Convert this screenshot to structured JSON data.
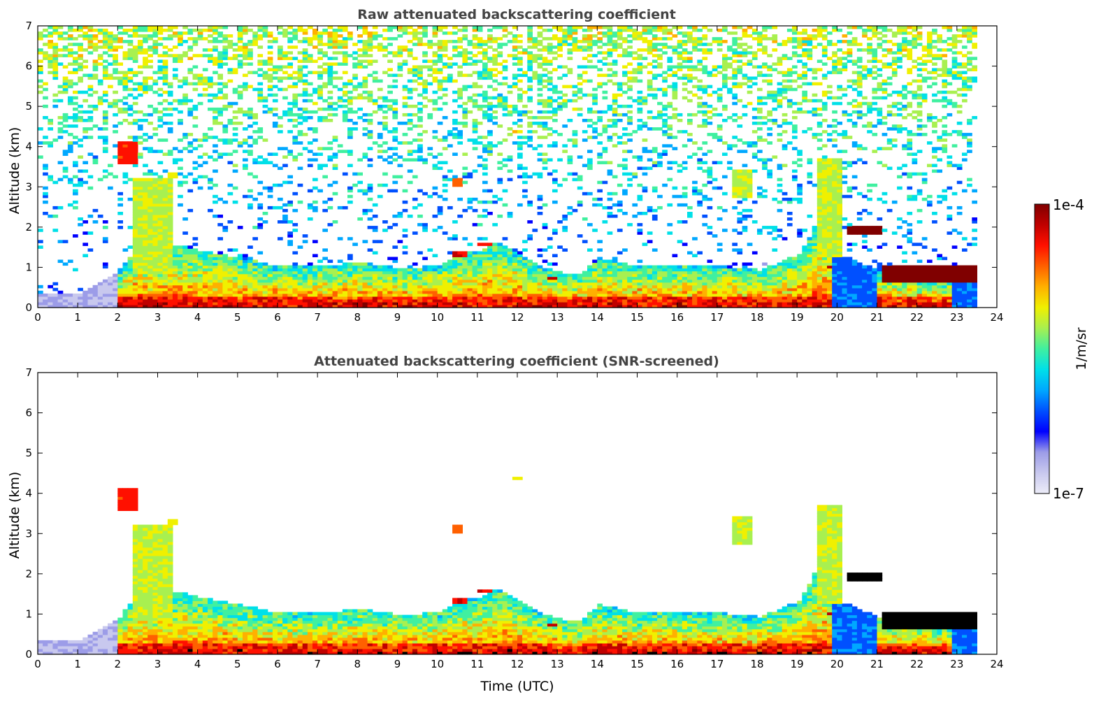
{
  "chart_data": [
    {
      "type": "heatmap",
      "title": "Raw attenuated backscattering coefficient",
      "xlabel": "",
      "ylabel": "Altitude (km)",
      "xlim": [
        0,
        24
      ],
      "ylim": [
        0,
        7
      ],
      "xticks": [
        "0",
        "1",
        "2",
        "3",
        "4",
        "5",
        "6",
        "7",
        "8",
        "9",
        "10",
        "11",
        "12",
        "13",
        "14",
        "15",
        "16",
        "17",
        "18",
        "19",
        "20",
        "21",
        "22",
        "23",
        "24"
      ],
      "yticks": [
        "0",
        "1",
        "2",
        "3",
        "4",
        "5",
        "6",
        "7"
      ],
      "data_end_time": 23.5,
      "boundary_layer_top_km": [
        [
          0,
          0.35
        ],
        [
          1,
          0.35
        ],
        [
          2,
          0.9
        ],
        [
          2.5,
          1.6
        ],
        [
          3,
          1.4
        ],
        [
          3.5,
          1.5
        ],
        [
          4,
          1.4
        ],
        [
          4.5,
          1.3
        ],
        [
          5,
          1.2
        ],
        [
          6,
          1.0
        ],
        [
          7,
          1.0
        ],
        [
          8,
          1.1
        ],
        [
          9,
          0.95
        ],
        [
          10,
          1.0
        ],
        [
          10.5,
          1.3
        ],
        [
          11,
          1.4
        ],
        [
          11.5,
          1.6
        ],
        [
          12,
          1.3
        ],
        [
          12.5,
          1.0
        ],
        [
          13,
          0.85
        ],
        [
          13.5,
          0.8
        ],
        [
          14,
          1.2
        ],
        [
          14.5,
          1.1
        ],
        [
          15,
          1.0
        ],
        [
          16,
          1.0
        ],
        [
          17,
          1.0
        ],
        [
          18,
          0.9
        ],
        [
          19,
          1.3
        ],
        [
          19.5,
          2.2
        ],
        [
          20,
          1.3
        ],
        [
          21,
          0.9
        ],
        [
          22,
          0.7
        ],
        [
          23.5,
          0.6
        ]
      ],
      "features": [
        {
          "kind": "aerosol-layer",
          "time": [
            2.0,
            2.4
          ],
          "alt": [
            3.5,
            4.1
          ],
          "intensity": 0.85
        },
        {
          "kind": "descending-plume",
          "time": [
            2.3,
            3.3
          ],
          "alt": [
            0.8,
            3.2
          ],
          "intensity": 0.6
        },
        {
          "kind": "aerosol-layer",
          "time": [
            3.2,
            3.45
          ],
          "alt": [
            3.15,
            3.35
          ],
          "intensity": 0.65
        },
        {
          "kind": "aerosol-layer",
          "time": [
            10.3,
            10.5
          ],
          "alt": [
            3.0,
            3.15
          ],
          "intensity": 0.8
        },
        {
          "kind": "aerosol-layer",
          "time": [
            11.8,
            12.0
          ],
          "alt": [
            4.3,
            4.4
          ],
          "intensity": 0.7
        },
        {
          "kind": "cloud",
          "time": [
            10.3,
            10.7
          ],
          "alt": [
            1.2,
            1.4
          ],
          "intensity": 0.9
        },
        {
          "kind": "cloud",
          "time": [
            10.9,
            11.3
          ],
          "alt": [
            1.5,
            1.6
          ],
          "intensity": 0.9
        },
        {
          "kind": "cloud",
          "time": [
            12.7,
            12.9
          ],
          "alt": [
            0.65,
            0.75
          ],
          "intensity": 0.95
        },
        {
          "kind": "plume",
          "time": [
            17.3,
            17.8
          ],
          "alt": [
            2.7,
            3.4
          ],
          "intensity": 0.6
        },
        {
          "kind": "plume",
          "time": [
            19.4,
            20.1
          ],
          "alt": [
            1.2,
            3.7
          ],
          "intensity": 0.6
        },
        {
          "kind": "cloud",
          "time": [
            20.2,
            21.1
          ],
          "alt": [
            1.8,
            2.0
          ],
          "intensity": 1.0
        },
        {
          "kind": "cloud",
          "time": [
            19.7,
            19.85
          ],
          "alt": [
            0.95,
            1.05
          ],
          "intensity": 0.95
        },
        {
          "kind": "cloud",
          "time": [
            21.1,
            23.5
          ],
          "alt": [
            0.6,
            1.0
          ],
          "intensity": 1.0
        }
      ]
    },
    {
      "type": "heatmap",
      "title": "Attenuated backscattering coefficient (SNR-screened)",
      "xlabel": "Time (UTC)",
      "ylabel": "Altitude (km)",
      "xlim": [
        0,
        24
      ],
      "ylim": [
        0,
        7
      ],
      "xticks": [
        "0",
        "1",
        "2",
        "3",
        "4",
        "5",
        "6",
        "7",
        "8",
        "9",
        "10",
        "11",
        "12",
        "13",
        "14",
        "15",
        "16",
        "17",
        "18",
        "19",
        "20",
        "21",
        "22",
        "23",
        "24"
      ],
      "yticks": [
        "0",
        "1",
        "2",
        "3",
        "4",
        "5",
        "6",
        "7"
      ],
      "data_end_time": 23.5,
      "screened": true
    }
  ],
  "colorbar": {
    "label": "1/m/sr",
    "max_label": "1e-4",
    "min_label": "1e-7",
    "scale": "log",
    "colormap": [
      "#ececf8",
      "#c8c8ee",
      "#9c9ce8",
      "#0000ff",
      "#0050ff",
      "#00a8ff",
      "#00e0e8",
      "#40f0a0",
      "#a8f050",
      "#f0f000",
      "#ffb000",
      "#ff6000",
      "#ff1000",
      "#c00000",
      "#800000"
    ]
  }
}
